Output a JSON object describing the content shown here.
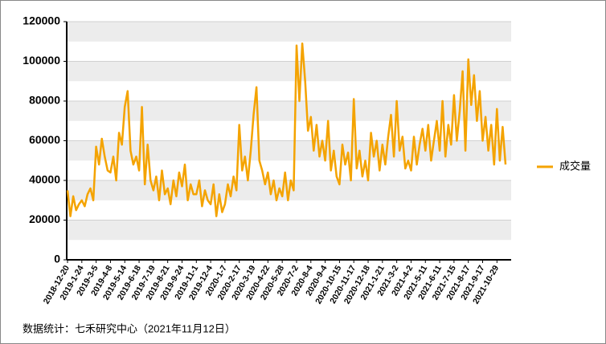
{
  "chart_data": {
    "type": "line",
    "categories": [
      "2018-12-20",
      null,
      null,
      null,
      null,
      "2019-1-24",
      null,
      null,
      null,
      null,
      "2019-3-5",
      null,
      null,
      null,
      null,
      "2019-4-8",
      null,
      null,
      null,
      null,
      "2019-5-14",
      null,
      null,
      null,
      null,
      "2019-6-18",
      null,
      null,
      null,
      null,
      "2019-7-19",
      null,
      null,
      null,
      null,
      "2019-8-21",
      null,
      null,
      null,
      null,
      "2019-9-24",
      null,
      null,
      null,
      null,
      "2019-11-1",
      null,
      null,
      null,
      null,
      "2019-12-4",
      null,
      null,
      null,
      null,
      "2020-1-7",
      null,
      null,
      null,
      null,
      "2020-2-17",
      null,
      null,
      null,
      null,
      "2020-3-19",
      null,
      null,
      null,
      null,
      "2020-4-22",
      null,
      null,
      null,
      null,
      "2020-5-28",
      null,
      null,
      null,
      null,
      "2020-7-2",
      null,
      null,
      null,
      null,
      "2020-8-4",
      null,
      null,
      null,
      null,
      "2020-9-4",
      null,
      null,
      null,
      null,
      "2020-10-15",
      null,
      null,
      null,
      null,
      "2020-11-17",
      null,
      null,
      null,
      null,
      "2020-12-18",
      null,
      null,
      null,
      null,
      "2021-1-21",
      null,
      null,
      null,
      null,
      "2021-3-2",
      null,
      null,
      null,
      null,
      "2021-4-2",
      null,
      null,
      null,
      null,
      "2021-5-11",
      null,
      null,
      null,
      null,
      "2021-6-11",
      null,
      null,
      null,
      null,
      "2021-7-15",
      null,
      null,
      null,
      null,
      "2021-8-17",
      null,
      null,
      null,
      null,
      "2021-9-17",
      null,
      null,
      null,
      null,
      "2021-10-29",
      null,
      null,
      null
    ],
    "series": [
      {
        "name": "成交量",
        "color": "#f4a300",
        "values": [
          35000,
          22000,
          32000,
          25000,
          28000,
          30000,
          27000,
          33000,
          36000,
          30000,
          57000,
          48000,
          61000,
          52000,
          45000,
          44000,
          52000,
          40000,
          64000,
          58000,
          77000,
          85000,
          55000,
          48000,
          52000,
          45000,
          77000,
          38000,
          58000,
          40000,
          35000,
          42000,
          30000,
          45000,
          33000,
          36000,
          28000,
          40000,
          32000,
          44000,
          37000,
          48000,
          30000,
          38000,
          33000,
          33000,
          40000,
          27000,
          35000,
          30000,
          28000,
          38000,
          22000,
          33000,
          24000,
          28000,
          38000,
          32000,
          42000,
          35000,
          68000,
          45000,
          52000,
          40000,
          55000,
          73000,
          87000,
          50000,
          45000,
          38000,
          44000,
          33000,
          40000,
          30000,
          36000,
          32000,
          44000,
          30000,
          40000,
          35000,
          108000,
          80000,
          109000,
          90000,
          65000,
          72000,
          55000,
          68000,
          52000,
          60000,
          50000,
          70000,
          45000,
          55000,
          42000,
          38000,
          58000,
          48000,
          54000,
          40000,
          81000,
          46000,
          55000,
          42000,
          50000,
          40000,
          64000,
          52000,
          60000,
          45000,
          58000,
          48000,
          62000,
          73000,
          52000,
          80000,
          55000,
          62000,
          46000,
          50000,
          45000,
          62000,
          48000,
          58000,
          66000,
          55000,
          68000,
          50000,
          60000,
          70000,
          55000,
          80000,
          52000,
          68000,
          58000,
          83000,
          60000,
          75000,
          95000,
          55000,
          101000,
          78000,
          93000,
          70000,
          85000,
          60000,
          72000,
          55000,
          68000,
          48000,
          76000,
          50000,
          67000,
          48000
        ]
      }
    ],
    "ylim": [
      0,
      120000
    ],
    "yticks": [
      0,
      20000,
      40000,
      60000,
      80000,
      100000,
      120000
    ],
    "grid": true,
    "legend": "right",
    "source": "数据统计：七禾研究中心（2021年11月12日）"
  }
}
